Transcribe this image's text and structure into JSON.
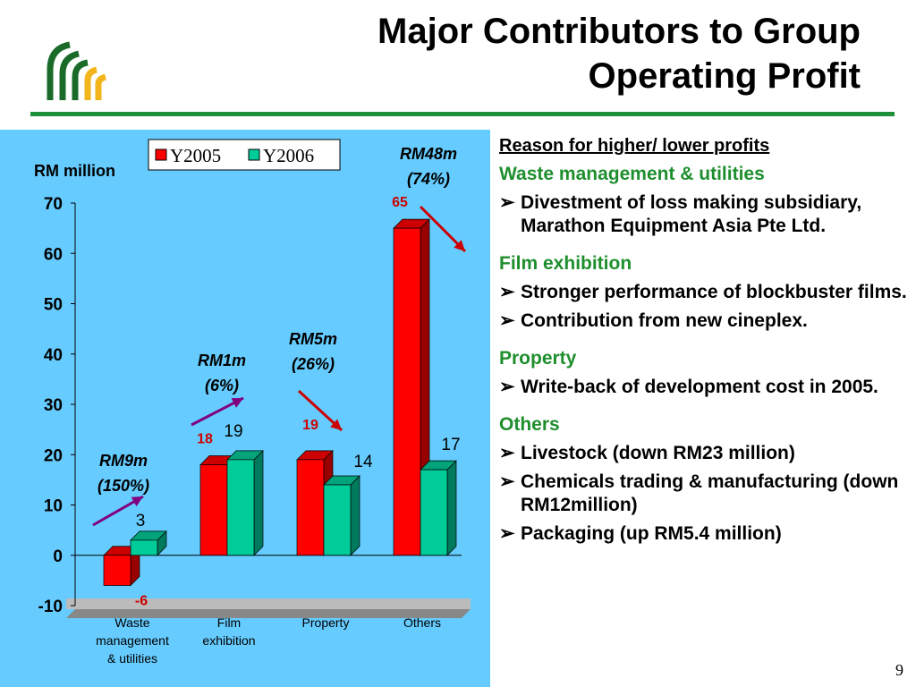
{
  "slide": {
    "title_line1": "Major Contributors to Group",
    "title_line2": "Operating Profit",
    "page_number": "9",
    "colors": {
      "rule": "#1e8f3a",
      "panel": "#66ccff",
      "section_title": "#1f8f2e",
      "logo_green": "#1a6b2a",
      "logo_yellow": "#f2b51c"
    },
    "icons": {
      "logo": "company-logo-arches",
      "bullet": "arrow-bullet"
    }
  },
  "chart_data": {
    "type": "bar",
    "ylabel": "RM million",
    "categories": [
      "Waste management & utilities",
      "Film exhibition",
      "Property",
      "Others"
    ],
    "category_lines": [
      [
        "Waste",
        "management",
        "& utilities"
      ],
      [
        "Film",
        "exhibition"
      ],
      [
        "Property"
      ],
      [
        "Others"
      ]
    ],
    "series": [
      {
        "name": "Y2005",
        "values": [
          -6,
          18,
          19,
          65
        ],
        "color": "#ff0000",
        "label_color": "#cc0000"
      },
      {
        "name": "Y2006",
        "values": [
          3,
          19,
          14,
          17
        ],
        "color": "#00cc99",
        "label_color": "#000000"
      }
    ],
    "ylim": [
      -10,
      70
    ],
    "yticks": [
      -10,
      0,
      10,
      20,
      30,
      40,
      50,
      60,
      70
    ],
    "legend_position": "top-center",
    "annotations": [
      {
        "category": 0,
        "direction": "up",
        "color": "#800080",
        "line1": "RM9m",
        "line2": "(150%)"
      },
      {
        "category": 1,
        "direction": "up",
        "color": "#800080",
        "line1": "RM1m",
        "line2": "(6%)"
      },
      {
        "category": 2,
        "direction": "down",
        "color": "#cc0000",
        "line1": "RM5m",
        "line2": "(26%)"
      },
      {
        "category": 3,
        "direction": "down",
        "color": "#cc0000",
        "line1": "RM48m",
        "line2": "(74%)"
      }
    ]
  },
  "reasons": {
    "heading": "Reason for higher/ lower profits",
    "sections": [
      {
        "title": "Waste management & utilities",
        "bullets": [
          "Divestment of loss making subsidiary, Marathon Equipment Asia Pte Ltd."
        ]
      },
      {
        "title": "Film exhibition",
        "bullets": [
          "Stronger performance of blockbuster films.",
          "Contribution from new cineplex."
        ]
      },
      {
        "title": "Property",
        "bullets": [
          "Write-back of development cost in 2005."
        ]
      },
      {
        "title": "Others",
        "bullets": [
          "Livestock (down RM23 million)",
          "Chemicals trading & manufacturing (down RM12million)",
          "Packaging (up RM5.4 million)"
        ]
      }
    ]
  }
}
